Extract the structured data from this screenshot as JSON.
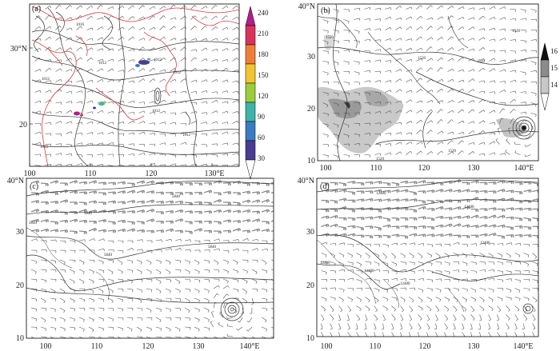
{
  "panels": [
    {
      "id": "a",
      "label": "(a)",
      "x_ticks": [
        "100",
        "110",
        "120",
        "130°E"
      ],
      "y_ticks": [
        "30°N",
        "20"
      ],
      "contour_labels": [
        "1016",
        "1012",
        "1012",
        "1012",
        "1012",
        "1012",
        "1012",
        "1012"
      ],
      "colorbar": {
        "ticks": [
          "240",
          "210",
          "180",
          "150",
          "120",
          "90",
          "60",
          "30"
        ],
        "colors": [
          "#ffffff",
          "#4a3d8f",
          "#3b7bbf",
          "#3fb3a8",
          "#9ccc3e",
          "#f2c431",
          "#ee7f3a",
          "#d8335c",
          "#b01e8c"
        ]
      }
    },
    {
      "id": "b",
      "label": "(b)",
      "x_ticks": [
        "100",
        "110",
        "120",
        "130",
        "140°E"
      ],
      "y_ticks": [
        "40°N",
        "30",
        "20",
        "10"
      ],
      "contour_labels": [
        "1520",
        "1520",
        "1520",
        "1520",
        "1520",
        "1520"
      ],
      "colorbar": {
        "ticks": [
          "16",
          "15",
          "14"
        ],
        "colors": [
          "#ffffff",
          "#c8c8c8",
          "#8c8c8c",
          "#111111"
        ]
      }
    },
    {
      "id": "c",
      "label": "(c)",
      "x_ticks": [
        "100",
        "110",
        "120",
        "130",
        "140°E"
      ],
      "y_ticks": [
        "40°N",
        "30",
        "20",
        "10"
      ],
      "contour_labels": [
        "5840",
        "5840",
        "5840",
        "5840",
        "5840"
      ]
    },
    {
      "id": "d",
      "label": "(d)",
      "x_ticks": [
        "100",
        "110",
        "120",
        "130",
        "140°E"
      ],
      "y_ticks": [
        "40°N",
        "30",
        "20",
        "10"
      ],
      "contour_labels": [
        "12480",
        "12480",
        "12480",
        "12480",
        "12480",
        "12480"
      ]
    }
  ],
  "colors": {
    "contour": "#333333",
    "coastline": "#d83c3c",
    "barb": "#555555",
    "barb_strong": "#8a8a8a",
    "frame": "#000000"
  }
}
